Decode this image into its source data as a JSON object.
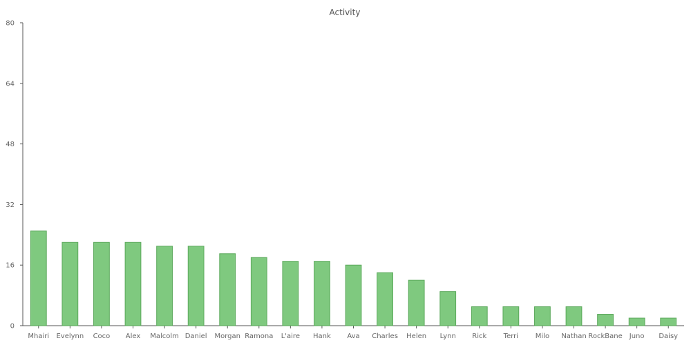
{
  "chart_data": {
    "type": "bar",
    "title": "Activity",
    "xlabel": "",
    "ylabel": "",
    "categories": [
      "Mhairi",
      "Evelynn",
      "Coco",
      "Alex",
      "Malcolm",
      "Daniel",
      "Morgan",
      "Ramona",
      "L'aire",
      "Hank",
      "Ava",
      "Charles",
      "Helen",
      "Lynn",
      "Rick",
      "Terri",
      "Milo",
      "Nathan",
      "RockBane",
      "Juno",
      "Daisy"
    ],
    "values": [
      25,
      22,
      22,
      22,
      21,
      21,
      19,
      18,
      17,
      17,
      16,
      14,
      12,
      9,
      5,
      5,
      5,
      5,
      3,
      2,
      2
    ],
    "ylim": [
      0,
      80
    ],
    "yticks": [
      "0",
      "16",
      "32",
      "48",
      "64",
      "80"
    ],
    "grid": false,
    "legend": "none",
    "colors": {
      "bar_fill": "#7fc97f",
      "bar_stroke": "#5aa85a",
      "axis": "#555555",
      "text": "#666666"
    }
  }
}
